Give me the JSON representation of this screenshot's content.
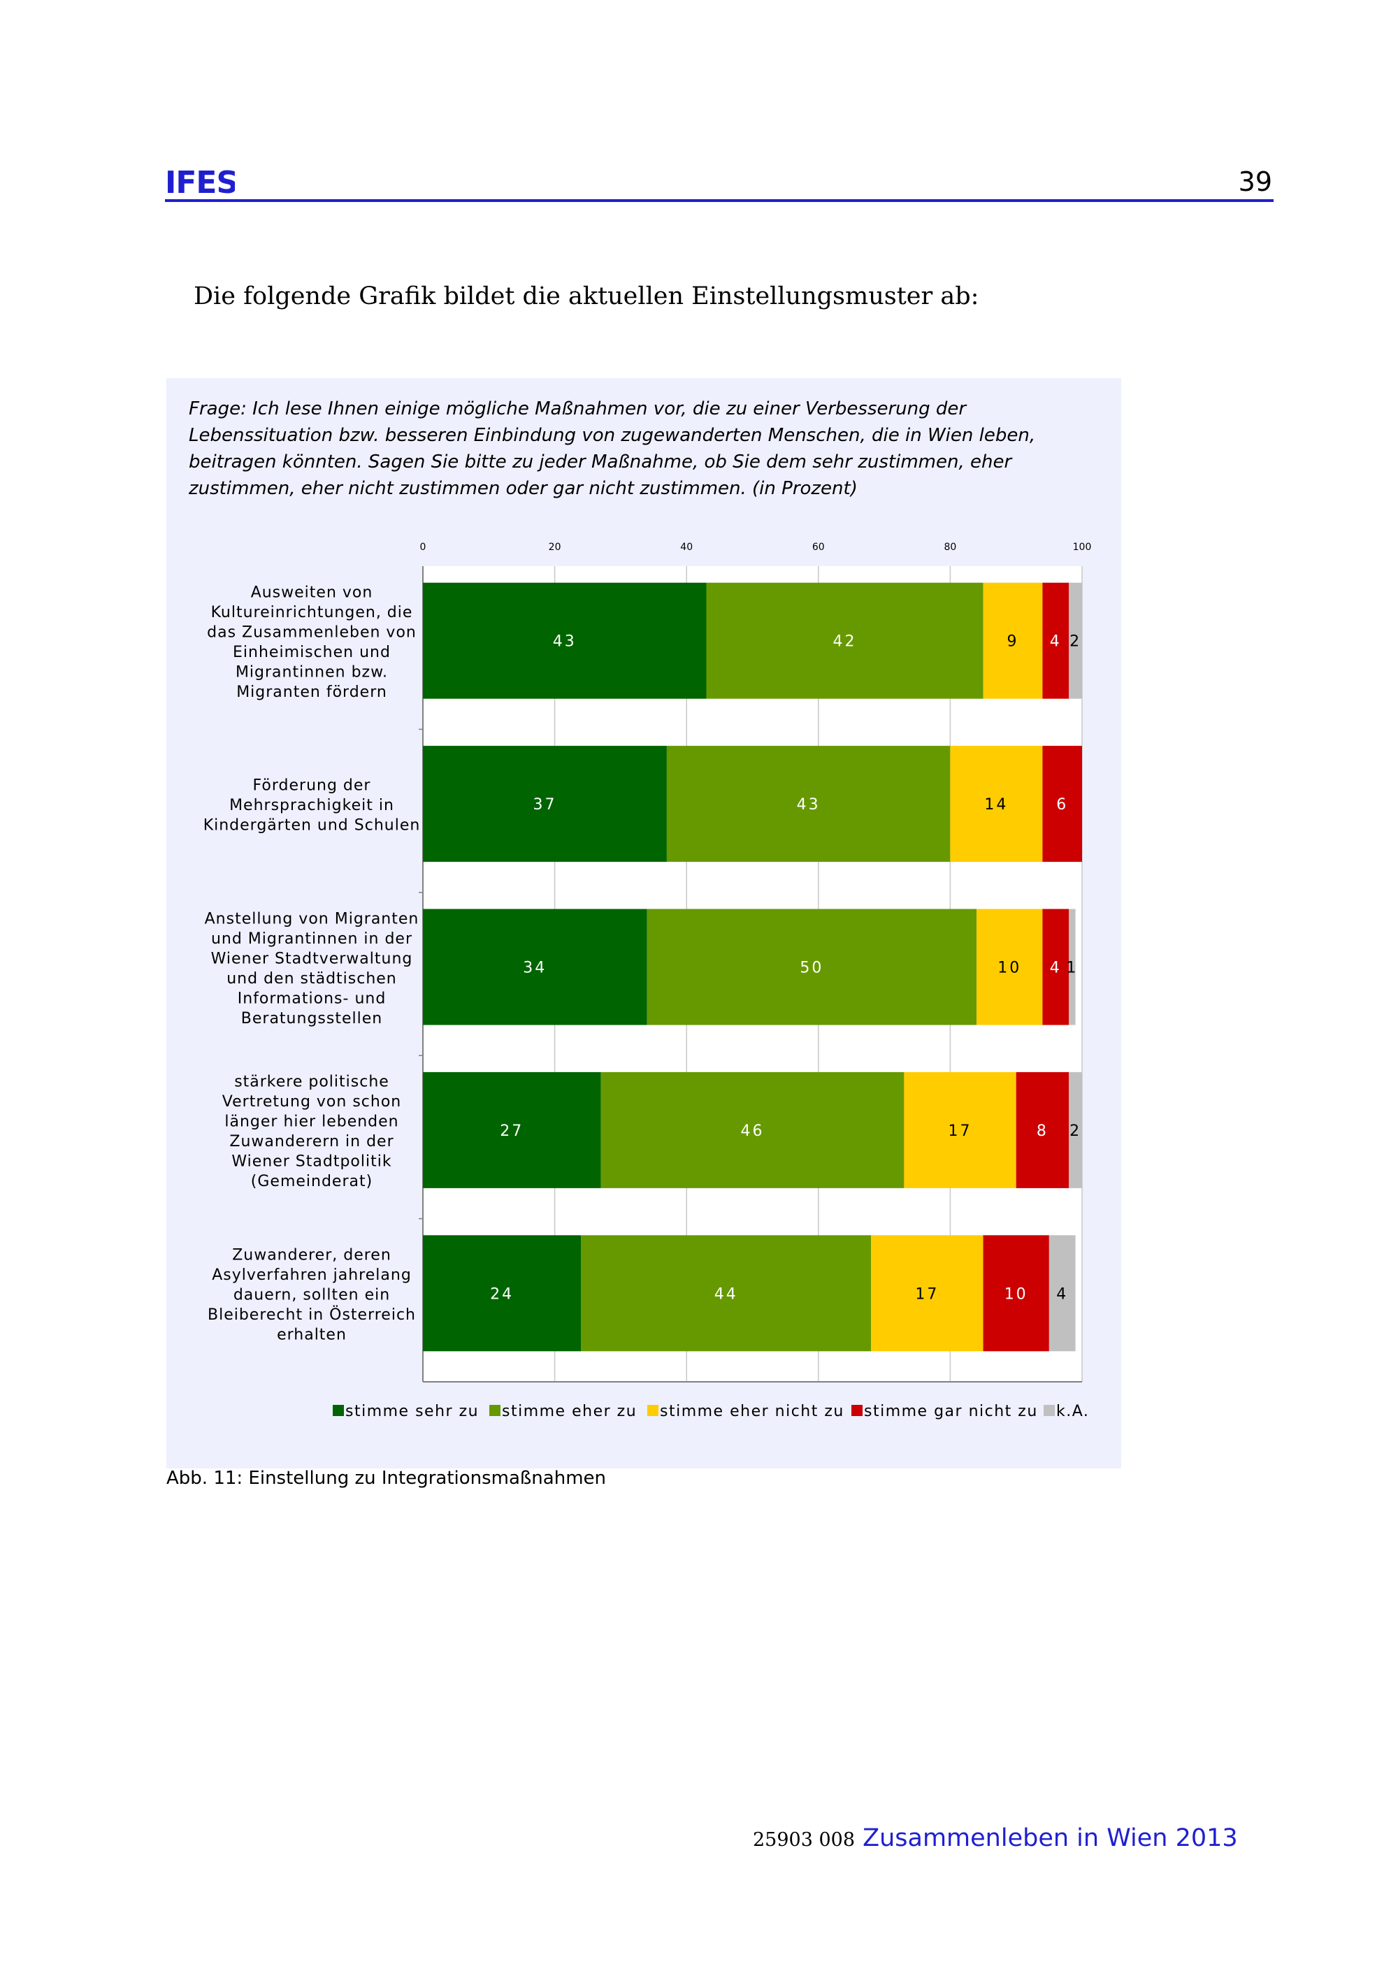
{
  "header": {
    "logo_text": "IFES",
    "page_number": "39"
  },
  "intro": "Die folgende Grafik bildet die aktuellen Einstellungsmuster ab:",
  "question": "Frage: Ich lese Ihnen einige mögliche Maßnahmen vor, die zu einer Verbesserung der Lebenssituation bzw. besseren Einbindung von zugewanderten Menschen, die in Wien leben, beitragen könnten. Sagen Sie bitte zu jeder Maßnahme, ob Sie dem sehr zustimmen, eher zustimmen, eher nicht zustimmen oder gar nicht zustimmen. (in Prozent)",
  "caption": "Abb. 11: Einstellung zu Integrationsmaßnahmen",
  "footer": {
    "code": "25903 008",
    "title": "Zusammenleben in Wien 2013"
  },
  "colors": {
    "brand_blue": "#1f1fd0",
    "figure_background": "#eef0fd"
  },
  "chart_data": {
    "type": "bar",
    "orientation": "horizontal",
    "stacked": true,
    "xlim": [
      0,
      100
    ],
    "xticks": [
      "0",
      "20",
      "40",
      "60",
      "80",
      "100"
    ],
    "grid": true,
    "legend_position": "bottom",
    "categories": [
      [
        "Ausweiten von",
        "Kultureinrichtungen, die",
        "das Zusammenleben von",
        "Einheimischen und",
        "Migrantinnen bzw.",
        "Migranten fördern"
      ],
      [
        "Förderung der",
        "Mehrsprachigkeit in",
        "Kindergärten und Schulen"
      ],
      [
        "Anstellung von Migranten",
        "und Migrantinnen in der",
        "Wiener Stadtverwaltung",
        "und den städtischen",
        "Informations- und",
        "Beratungsstellen"
      ],
      [
        "stärkere politische",
        "Vertretung von schon",
        "länger hier lebenden",
        "Zuwanderern in der",
        "Wiener Stadtpolitik",
        "(Gemeinderat)"
      ],
      [
        "Zuwanderer, deren",
        "Asylverfahren jahrelang",
        "dauern, sollten ein",
        "Bleiberecht in Österreich",
        "erhalten"
      ]
    ],
    "series": [
      {
        "name": "stimme sehr zu",
        "color": "#006400",
        "values": [
          43,
          37,
          34,
          27,
          24
        ]
      },
      {
        "name": "stimme eher zu",
        "color": "#669900",
        "values": [
          42,
          43,
          50,
          46,
          44
        ]
      },
      {
        "name": "stimme eher nicht zu",
        "color": "#ffcc00",
        "values": [
          9,
          14,
          10,
          17,
          17
        ]
      },
      {
        "name": "stimme gar nicht zu",
        "color": "#cc0000",
        "values": [
          4,
          6,
          4,
          8,
          10
        ]
      },
      {
        "name": "k.A.",
        "color": "#c0c0c0",
        "values": [
          2,
          0,
          1,
          2,
          4
        ]
      }
    ]
  }
}
